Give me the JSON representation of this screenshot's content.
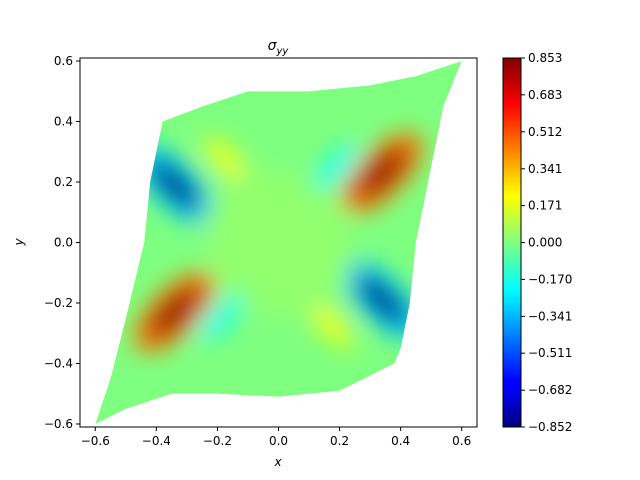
{
  "chart_data": {
    "type": "heatmap",
    "title": "σ",
    "title_subscript": "yy",
    "xlabel": "x",
    "ylabel": "y",
    "xlim": [
      -0.65,
      0.65
    ],
    "ylim": [
      -0.61,
      0.61
    ],
    "xticks": [
      -0.6,
      -0.4,
      -0.2,
      0.0,
      0.2,
      0.4,
      0.6
    ],
    "xtick_labels": [
      "−0.6",
      "−0.4",
      "−0.2",
      "0.0",
      "0.2",
      "0.4",
      "0.6"
    ],
    "yticks": [
      -0.6,
      -0.4,
      -0.2,
      0.0,
      0.2,
      0.4,
      0.6
    ],
    "ytick_labels": [
      "−0.6",
      "−0.4",
      "−0.2",
      "0.0",
      "0.2",
      "0.4",
      "0.6"
    ],
    "colormap": "jet",
    "colorbar": {
      "min": -0.852,
      "max": 0.853,
      "ticks": [
        -0.852,
        -0.682,
        -0.511,
        -0.341,
        -0.17,
        0.0,
        0.171,
        0.341,
        0.512,
        0.683,
        0.853
      ],
      "tick_labels": [
        "−0.852",
        "−0.682",
        "−0.511",
        "−0.341",
        "−0.170",
        "0.000",
        "0.171",
        "0.341",
        "0.512",
        "0.683",
        "0.853"
      ]
    },
    "domain_outline": [
      [
        -0.6,
        -0.6
      ],
      [
        -0.5,
        -0.55
      ],
      [
        -0.35,
        -0.5
      ],
      [
        -0.2,
        -0.5
      ],
      [
        0.0,
        -0.51
      ],
      [
        0.2,
        -0.49
      ],
      [
        0.38,
        -0.4
      ],
      [
        0.4,
        -0.35
      ],
      [
        0.43,
        -0.2
      ],
      [
        0.45,
        0.0
      ],
      [
        0.5,
        0.25
      ],
      [
        0.54,
        0.45
      ],
      [
        0.6,
        0.6
      ],
      [
        0.45,
        0.55
      ],
      [
        0.3,
        0.52
      ],
      [
        0.1,
        0.5
      ],
      [
        -0.1,
        0.5
      ],
      [
        -0.25,
        0.45
      ],
      [
        -0.38,
        0.4
      ],
      [
        -0.42,
        0.2
      ],
      [
        -0.44,
        0.0
      ],
      [
        -0.5,
        -0.25
      ],
      [
        -0.55,
        -0.45
      ]
    ],
    "features": [
      {
        "x": 0.34,
        "y": 0.23,
        "value": 0.853
      },
      {
        "x": -0.34,
        "y": -0.23,
        "value": 0.853
      },
      {
        "x": -0.34,
        "y": 0.19,
        "value": -0.852
      },
      {
        "x": 0.34,
        "y": -0.19,
        "value": -0.852
      },
      {
        "x": -0.17,
        "y": 0.27,
        "value": 0.2
      },
      {
        "x": 0.17,
        "y": -0.27,
        "value": 0.2
      },
      {
        "x": 0.19,
        "y": 0.25,
        "value": -0.2
      },
      {
        "x": -0.19,
        "y": -0.25,
        "value": -0.2
      },
      {
        "x": 0.0,
        "y": 0.0,
        "value": 0.03
      }
    ]
  }
}
